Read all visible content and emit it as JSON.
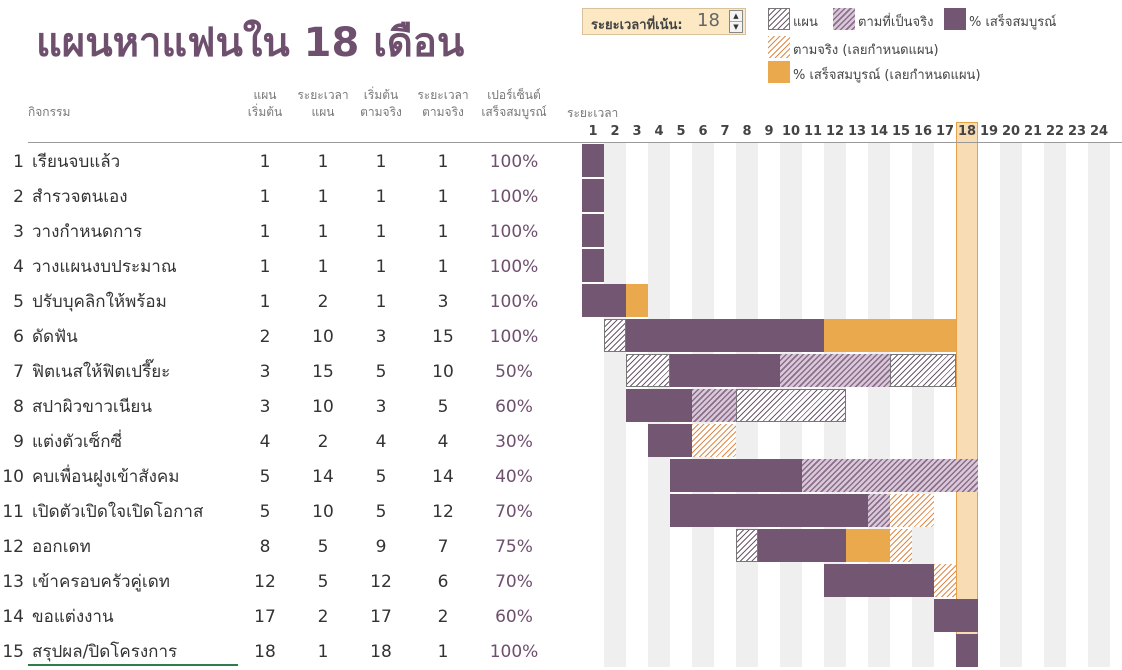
{
  "title": "แผนหาแฟนใน 18 เดือน",
  "period": {
    "label": "ระยะเวลาที่เน้น:",
    "value": 18
  },
  "legend": [
    {
      "key": "plan",
      "label": "แผน"
    },
    {
      "key": "actual",
      "label": "ตามที่เป็นจริง"
    },
    {
      "key": "complete",
      "label": "% เสร็จสมบูรณ์"
    },
    {
      "key": "actual_beyond",
      "label": "ตามจริง (เลยกำหนดแผน)"
    },
    {
      "key": "complete_beyond",
      "label": "% เสร็จสมบูรณ์ (เลยกำหนดแผน)"
    }
  ],
  "columns": {
    "activity": "กิจกรรม",
    "plan_start": [
      "แผน",
      "เริ่มต้น"
    ],
    "plan_duration": [
      "ระยะเวลา",
      "แผน"
    ],
    "actual_start": [
      "เริ่มต้น",
      "ตามจริง"
    ],
    "actual_duration": [
      "ระยะเวลา",
      "ตามจริง"
    ],
    "percent_complete": [
      "เปอร์เซ็นต์",
      "เสร็จสมบูรณ์"
    ],
    "periods": "ระยะเวลา"
  },
  "periods": [
    "1",
    "2",
    "3",
    "4",
    "5",
    "6",
    "7",
    "8",
    "9",
    "10",
    "11",
    "12",
    "13",
    "14",
    "15",
    "16",
    "17",
    "18",
    "19",
    "20",
    "21",
    "22",
    "23",
    "24"
  ],
  "activities": [
    {
      "num": "1",
      "name": "เรียนจบแล้ว",
      "plan_start": 1,
      "plan_duration": 1,
      "actual_start": 1,
      "actual_duration": 1,
      "percent": "100%"
    },
    {
      "num": "2",
      "name": "สำรวจตนเอง",
      "plan_start": 1,
      "plan_duration": 1,
      "actual_start": 1,
      "actual_duration": 1,
      "percent": "100%"
    },
    {
      "num": "3",
      "name": "วางกำหนดการ",
      "plan_start": 1,
      "plan_duration": 1,
      "actual_start": 1,
      "actual_duration": 1,
      "percent": "100%"
    },
    {
      "num": "4",
      "name": "วางแผนงบประมาณ",
      "plan_start": 1,
      "plan_duration": 1,
      "actual_start": 1,
      "actual_duration": 1,
      "percent": "100%"
    },
    {
      "num": "5",
      "name": "ปรับบุคลิกให้พร้อม",
      "plan_start": 1,
      "plan_duration": 2,
      "actual_start": 1,
      "actual_duration": 3,
      "percent": "100%"
    },
    {
      "num": "6",
      "name": "ดัดฟัน",
      "plan_start": 2,
      "plan_duration": 10,
      "actual_start": 3,
      "actual_duration": 15,
      "percent": "100%"
    },
    {
      "num": "7",
      "name": "ฟิตเนสให้ฟิตเปรี๊ยะ",
      "plan_start": 3,
      "plan_duration": 15,
      "actual_start": 5,
      "actual_duration": 10,
      "percent": "50%"
    },
    {
      "num": "8",
      "name": "สปาผิวขาวเนียน",
      "plan_start": 3,
      "plan_duration": 10,
      "actual_start": 3,
      "actual_duration": 5,
      "percent": "60%"
    },
    {
      "num": "9",
      "name": "แต่งตัวเซ็กซี่",
      "plan_start": 4,
      "plan_duration": 2,
      "actual_start": 4,
      "actual_duration": 4,
      "percent": "30%"
    },
    {
      "num": "10",
      "name": "คบเพื่อนฝูงเข้าสังคม",
      "plan_start": 5,
      "plan_duration": 14,
      "actual_start": 5,
      "actual_duration": 14,
      "percent": "40%"
    },
    {
      "num": "11",
      "name": "เปิดตัวเปิดใจเปิดโอกาส",
      "plan_start": 5,
      "plan_duration": 10,
      "actual_start": 5,
      "actual_duration": 12,
      "percent": "70%"
    },
    {
      "num": "12",
      "name": "ออกเดท",
      "plan_start": 8,
      "plan_duration": 5,
      "actual_start": 9,
      "actual_duration": 7,
      "percent": "75%"
    },
    {
      "num": "13",
      "name": "เข้าครอบครัวคู่เดท",
      "plan_start": 12,
      "plan_duration": 5,
      "actual_start": 12,
      "actual_duration": 6,
      "percent": "70%"
    },
    {
      "num": "14",
      "name": "ขอแต่งงาน",
      "plan_start": 17,
      "plan_duration": 2,
      "actual_start": 17,
      "actual_duration": 2,
      "percent": "60%"
    },
    {
      "num": "15",
      "name": "สรุปผล/ปิดโครงการ",
      "plan_start": 18,
      "plan_duration": 1,
      "actual_start": 18,
      "actual_duration": 1,
      "percent": "100%"
    }
  ],
  "colors": {
    "complete": "#735672",
    "actual_hatch": "#8a6d8a",
    "beyond_solid": "#e9a94c",
    "beyond_hatch": "#e08a4a",
    "highlight": "#f8dcb4"
  }
}
